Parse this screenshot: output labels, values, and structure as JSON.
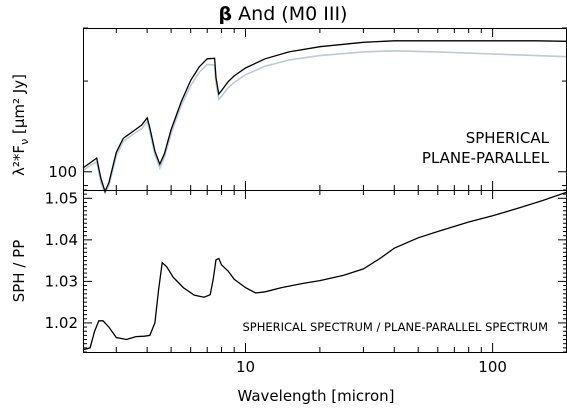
{
  "chart_data": [
    {
      "type": "line",
      "title_symbol": "β",
      "title_rest": " And (M0 III)",
      "ylabel": "λ²*F",
      "ylabel_sub": "ν",
      "ylabel_units": " [μm² Jy]",
      "xscale": "log",
      "yscale": "log",
      "xlim": [
        2.2,
        200
      ],
      "ylim": [
        87,
        300
      ],
      "yticks": [
        {
          "value": 100,
          "label": "100"
        }
      ],
      "legend_position": "right",
      "colors": {
        "spherical": "#000000",
        "plane_parallel": "#b9cbd8"
      },
      "series": [
        {
          "name": "SPHERICAL",
          "x": [
            2.2,
            2.35,
            2.5,
            2.6,
            2.7,
            2.8,
            3.0,
            3.2,
            3.5,
            3.8,
            4.0,
            4.1,
            4.3,
            4.5,
            4.7,
            5.0,
            5.5,
            6.0,
            6.5,
            7.0,
            7.5,
            7.6,
            7.8,
            8.0,
            8.5,
            9.0,
            10,
            12,
            15,
            20,
            30,
            40,
            60,
            100,
            150,
            200
          ],
          "y": [
            103,
            107,
            111,
            95,
            86,
            92,
            116,
            129,
            136,
            143,
            151,
            140,
            117,
            106,
            115,
            138,
            171,
            201,
            223,
            237,
            238,
            205,
            181,
            186,
            199,
            208,
            221,
            237,
            250,
            260,
            269,
            272,
            272,
            272,
            272,
            271
          ]
        },
        {
          "name": "PLANE-PARALLEL",
          "x": [
            2.2,
            2.35,
            2.5,
            2.6,
            2.7,
            2.8,
            3.0,
            3.2,
            3.5,
            3.8,
            4.0,
            4.1,
            4.3,
            4.5,
            4.7,
            5.0,
            5.5,
            6.0,
            6.5,
            7.0,
            7.5,
            7.6,
            7.8,
            8.0,
            8.5,
            9.0,
            10,
            12,
            15,
            20,
            30,
            40,
            60,
            100,
            150,
            200
          ],
          "y": [
            101,
            105,
            108,
            92,
            85,
            90,
            113,
            126,
            133,
            139,
            147,
            136,
            114,
            103,
            112,
            134,
            166,
            193,
            214,
            227,
            226,
            197,
            174,
            178,
            190,
            198,
            210,
            224,
            235,
            243,
            250,
            252,
            250,
            246,
            243,
            241
          ]
        }
      ]
    },
    {
      "type": "line",
      "xlabel": "Wavelength [micron]",
      "ylabel": "SPH / PP",
      "xscale": "log",
      "xlim": [
        2.2,
        200
      ],
      "ylim": [
        1.013,
        1.052
      ],
      "xticks": [
        {
          "value": 10,
          "label": "10"
        },
        {
          "value": 100,
          "label": "100"
        }
      ],
      "yticks": [
        {
          "value": 1.02,
          "label": "1.02"
        },
        {
          "value": 1.03,
          "label": "1.03"
        },
        {
          "value": 1.04,
          "label": "1.04"
        },
        {
          "value": 1.05,
          "label": "1.05"
        }
      ],
      "annotation": "SPHERICAL SPECTRUM / PLANE-PARALLEL SPECTRUM",
      "series": [
        {
          "x": [
            2.2,
            2.35,
            2.45,
            2.55,
            2.65,
            2.8,
            3.0,
            3.3,
            3.6,
            3.9,
            4.1,
            4.3,
            4.45,
            4.6,
            4.8,
            5.1,
            5.6,
            6.2,
            6.8,
            7.2,
            7.4,
            7.6,
            7.8,
            8.0,
            8.5,
            9.0,
            10,
            11,
            12,
            14,
            17,
            20,
            25,
            30,
            35,
            40,
            50,
            60,
            80,
            100,
            130,
            160,
            200
          ],
          "y": [
            1.0135,
            1.014,
            1.018,
            1.0205,
            1.0205,
            1.019,
            1.0165,
            1.016,
            1.0167,
            1.0168,
            1.017,
            1.02,
            1.028,
            1.0345,
            1.0335,
            1.031,
            1.0285,
            1.0267,
            1.0262,
            1.0268,
            1.0305,
            1.0352,
            1.0355,
            1.034,
            1.0325,
            1.0305,
            1.0285,
            1.0272,
            1.0275,
            1.0285,
            1.0295,
            1.0302,
            1.0315,
            1.033,
            1.0355,
            1.038,
            1.0405,
            1.042,
            1.0443,
            1.0458,
            1.0478,
            1.0495,
            1.0515
          ]
        }
      ]
    }
  ]
}
